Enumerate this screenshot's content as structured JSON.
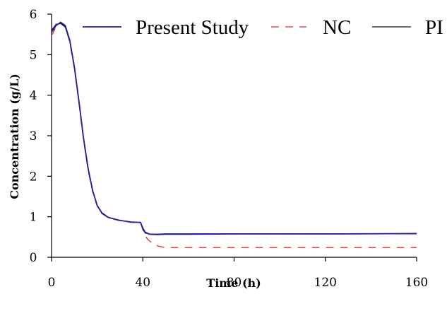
{
  "chart_data": {
    "type": "line",
    "xlabel": "Time (h)",
    "ylabel": "Concentration (g/L)",
    "xlim": [
      0,
      160
    ],
    "ylim": [
      0,
      6
    ],
    "xticks": [
      0,
      40,
      80,
      120,
      160
    ],
    "yticks": [
      0,
      1,
      2,
      3,
      4,
      5,
      6
    ],
    "grid": false,
    "legend_position": "top",
    "series": [
      {
        "name": "Present Study",
        "color": "#1f1fa8",
        "dash": "solid",
        "x": [
          0,
          2,
          4,
          6,
          8,
          10,
          12,
          14,
          16,
          18,
          20,
          22,
          25,
          30,
          35,
          39,
          40,
          41,
          43,
          46,
          50,
          60,
          80,
          100,
          120,
          140,
          160
        ],
        "y": [
          5.55,
          5.72,
          5.8,
          5.72,
          5.35,
          4.7,
          3.85,
          2.95,
          2.2,
          1.65,
          1.28,
          1.1,
          0.98,
          0.91,
          0.87,
          0.86,
          0.72,
          0.62,
          0.57,
          0.56,
          0.57,
          0.57,
          0.575,
          0.575,
          0.575,
          0.58,
          0.585
        ]
      },
      {
        "name": "NC",
        "color": "#e8262a",
        "dash": "dashed",
        "x": [
          0,
          2,
          4,
          6,
          8,
          10,
          12,
          14,
          16,
          18,
          20,
          22,
          25,
          30,
          35,
          39,
          40,
          41,
          42,
          44,
          46,
          48,
          50,
          60,
          80,
          100,
          120,
          140,
          160
        ],
        "y": [
          5.47,
          5.68,
          5.78,
          5.7,
          5.3,
          4.65,
          3.8,
          2.9,
          2.15,
          1.62,
          1.26,
          1.08,
          0.97,
          0.9,
          0.86,
          0.85,
          0.68,
          0.55,
          0.45,
          0.35,
          0.29,
          0.26,
          0.24,
          0.24,
          0.24,
          0.24,
          0.24,
          0.24,
          0.24
        ]
      },
      {
        "name": "PI",
        "color": "#111111",
        "dash": "solid",
        "x": [
          0,
          2,
          4,
          6,
          8,
          10,
          12,
          14,
          16,
          18,
          20,
          22,
          25,
          30,
          35,
          39,
          40,
          41,
          43,
          46,
          50,
          60,
          80,
          100,
          120,
          140,
          160
        ],
        "y": [
          5.6,
          5.75,
          5.77,
          5.68,
          5.33,
          4.68,
          3.83,
          2.93,
          2.18,
          1.64,
          1.27,
          1.09,
          0.98,
          0.91,
          0.87,
          0.86,
          0.7,
          0.6,
          0.57,
          0.57,
          0.58,
          0.58,
          0.58,
          0.58,
          0.58,
          0.58,
          0.58
        ]
      }
    ]
  }
}
